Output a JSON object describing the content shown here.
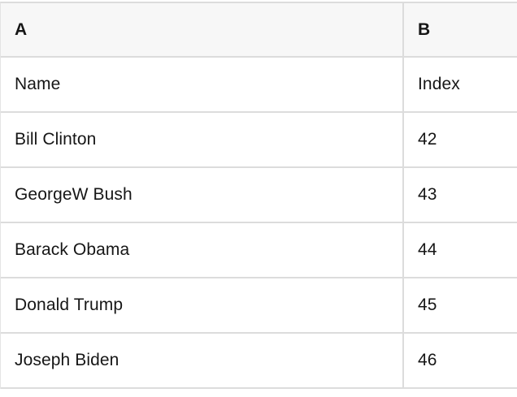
{
  "table": {
    "columns": [
      {
        "label": "A"
      },
      {
        "label": "B"
      }
    ],
    "rows": [
      {
        "a": "Name",
        "b": "Index"
      },
      {
        "a": "Bill Clinton",
        "b": "42"
      },
      {
        "a": "GeorgeW Bush",
        "b": "43"
      },
      {
        "a": "Barack Obama",
        "b": "44"
      },
      {
        "a": "Donald Trump",
        "b": "45"
      },
      {
        "a": "Joseph Biden",
        "b": "46"
      }
    ]
  },
  "colors": {
    "header_bg": "#f7f7f7",
    "grid_border": "#dcdcdc",
    "text": "#161616",
    "row_bg": "#ffffff"
  }
}
